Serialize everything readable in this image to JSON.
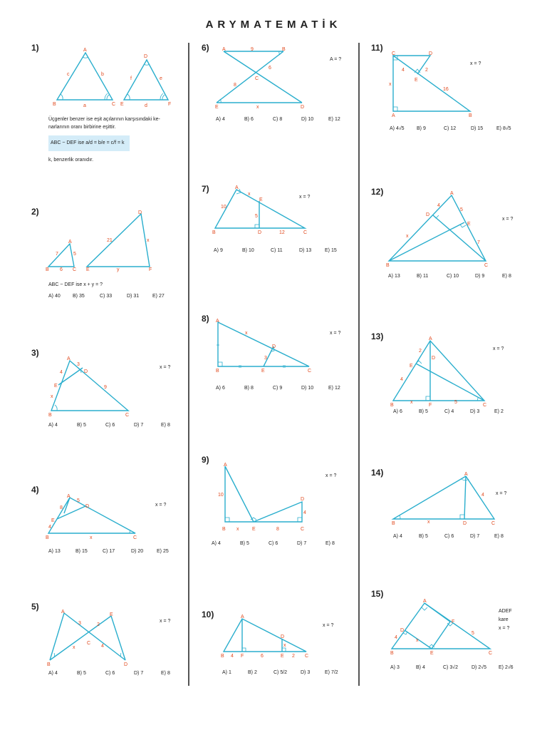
{
  "title": "ARYMATEMATİK",
  "colors": {
    "line": "#2aaecd",
    "label": "#e04a1f",
    "highlight": "#d4ecf8"
  },
  "q1": {
    "num": "1)",
    "text1": "Üçgenler benzer ise eşit açılarının karşısındaki ke-",
    "text2": "narlarının oranı birbirine eşittir.",
    "formula": "ABC ~ DEF ise a/d = b/e = c/f = k",
    "text3": "k, benzerlik oranıdır.",
    "labels": {
      "A": "A",
      "B": "B",
      "C": "C",
      "D": "D",
      "E": "E",
      "F": "F",
      "a": "a",
      "b": "b",
      "c": "c",
      "d": "d",
      "e": "e",
      "f": "f"
    }
  },
  "q2": {
    "num": "2)",
    "statement": "ABC ~ DEF ise x + y = ?",
    "options": [
      "A) 40",
      "B) 35",
      "C) 33",
      "D) 31",
      "E) 27"
    ],
    "labels": {
      "A": "A",
      "B": "B",
      "C": "C",
      "D": "D",
      "E": "E",
      "F": "F",
      "m1": "7",
      "m2": "5",
      "m3": "6",
      "m4": "21",
      "x": "x",
      "y": "y"
    }
  },
  "q3": {
    "num": "3)",
    "ask": "x = ?",
    "options": [
      "A) 4",
      "B) 5",
      "C) 6",
      "D) 7",
      "E) 8"
    ],
    "labels": {
      "A": "A",
      "B": "B",
      "C": "C",
      "D": "D",
      "E": "E",
      "m1": "3",
      "m2": "4",
      "m3": "9",
      "x": "x"
    }
  },
  "q4": {
    "num": "4)",
    "ask": "x = ?",
    "options": [
      "A) 13",
      "B) 15",
      "C) 17",
      "D) 20",
      "E) 25"
    ],
    "labels": {
      "A": "A",
      "B": "B",
      "C": "C",
      "D": "D",
      "E": "E",
      "m1": "8",
      "m2": "5",
      "m3": "4",
      "x": "x"
    }
  },
  "q5": {
    "num": "5)",
    "ask": "x = ?",
    "options": [
      "A) 4",
      "B) 5",
      "C) 6",
      "D) 7",
      "E) 8"
    ],
    "labels": {
      "A": "A",
      "B": "B",
      "C": "C",
      "D": "D",
      "E": "E",
      "m1": "3",
      "m2": "2",
      "m3": "4",
      "x": "x"
    }
  },
  "q6": {
    "num": "6)",
    "ask": "A = ?",
    "options": [
      "A) 4",
      "B) 6",
      "C) 8",
      "D) 10",
      "E) 12"
    ],
    "labels": {
      "A": "A",
      "B": "B",
      "C": "C",
      "D": "D",
      "E": "E",
      "m1": "9",
      "m2": "6",
      "m3": "8",
      "x": "x"
    }
  },
  "q7": {
    "num": "7)",
    "ask": "x = ?",
    "options": [
      "A) 9",
      "B) 10",
      "C) 11",
      "D) 13",
      "E) 15"
    ],
    "labels": {
      "A": "A",
      "B": "B",
      "C": "C",
      "D": "D",
      "E": "E",
      "m1": "10",
      "m2": "5",
      "m3": "12",
      "x": "x"
    }
  },
  "q8": {
    "num": "8)",
    "ask": "x = ?",
    "options": [
      "A) 6",
      "B) 8",
      "C) 9",
      "D) 10",
      "E) 12"
    ],
    "labels": {
      "A": "A",
      "B": "B",
      "C": "C",
      "D": "D",
      "E": "E",
      "m1": "3",
      "x": "x"
    }
  },
  "q9": {
    "num": "9)",
    "ask": "x = ?",
    "options": [
      "A) 4",
      "B) 5",
      "C) 6",
      "D) 7",
      "E) 8"
    ],
    "labels": {
      "A": "A",
      "B": "B",
      "C": "C",
      "D": "D",
      "E": "E",
      "m1": "10",
      "m2": "4",
      "m3": "8",
      "x": "x"
    }
  },
  "q10": {
    "num": "10)",
    "ask": "x = ?",
    "options": [
      "A) 1",
      "B) 2",
      "C) 5/2",
      "D) 3",
      "E) 7/2"
    ],
    "labels": {
      "A": "A",
      "B": "B",
      "C": "C",
      "D": "D",
      "E": "E",
      "F": "F",
      "m1": "4",
      "m2": "6",
      "m3": "2",
      "x": "x"
    }
  },
  "q11": {
    "num": "11)",
    "ask": "x = ?",
    "options": [
      "A) 4√5",
      "B) 9",
      "C) 12",
      "D) 15",
      "E) 8√5"
    ],
    "labels": {
      "A": "A",
      "B": "B",
      "C": "C",
      "D": "D",
      "E": "E",
      "m1": "4",
      "m2": "2",
      "m3": "16",
      "x": "x"
    }
  },
  "q12": {
    "num": "12)",
    "ask": "x = ?",
    "options": [
      "A) 13",
      "B) 11",
      "C) 10",
      "D) 9",
      "E) 8"
    ],
    "labels": {
      "A": "A",
      "B": "B",
      "C": "C",
      "D": "D",
      "E": "E",
      "m1": "4",
      "m2": "5",
      "m3": "7",
      "x": "x"
    }
  },
  "q13": {
    "num": "13)",
    "ask": "x = ?",
    "options": [
      "A) 6",
      "B) 5",
      "C) 4",
      "D) 3",
      "E) 2"
    ],
    "labels": {
      "A": "A",
      "B": "B",
      "C": "C",
      "D": "D",
      "E": "E",
      "F": "F",
      "m1": "2",
      "m2": "4",
      "m3": "5",
      "x": "x"
    }
  },
  "q14": {
    "num": "14)",
    "ask": "x = ?",
    "options": [
      "A) 4",
      "B) 5",
      "C) 6",
      "D) 7",
      "E) 8"
    ],
    "labels": {
      "A": "A",
      "B": "B",
      "C": "C",
      "D": "D",
      "m1": "4",
      "x": "x"
    }
  },
  "q15": {
    "num": "15)",
    "ask1": "ADEF",
    "ask2": "kare",
    "ask3": "x = ?",
    "options": [
      "A) 3",
      "B) 4",
      "C) 3√2",
      "D) 2√5",
      "E) 2√6"
    ],
    "labels": {
      "A": "A",
      "B": "B",
      "C": "C",
      "D": "D",
      "E": "E",
      "F": "F",
      "m1": "4",
      "m2": "5",
      "x": "x"
    }
  }
}
